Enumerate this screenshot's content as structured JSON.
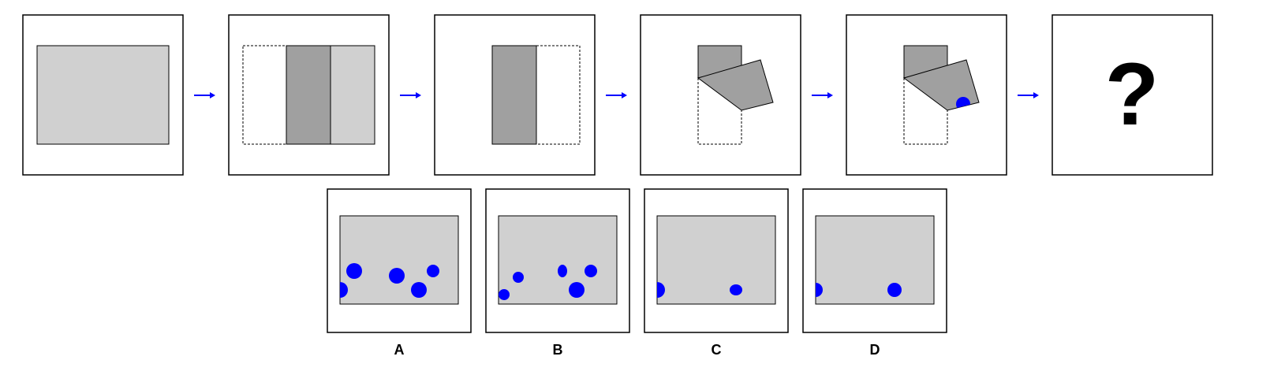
{
  "puzzle": {
    "question_mark": "?",
    "options": [
      {
        "label": "A"
      },
      {
        "label": "B"
      },
      {
        "label": "C"
      },
      {
        "label": "D"
      }
    ]
  },
  "colors": {
    "paper": "#d0d0d0",
    "folded": "#a0a0a0",
    "hole": "#0000ff",
    "arrow": "#0000ff",
    "outline": "#000000"
  },
  "icons": {
    "arrow": "arrow-right-icon",
    "punch": "punched-hole-icon"
  }
}
